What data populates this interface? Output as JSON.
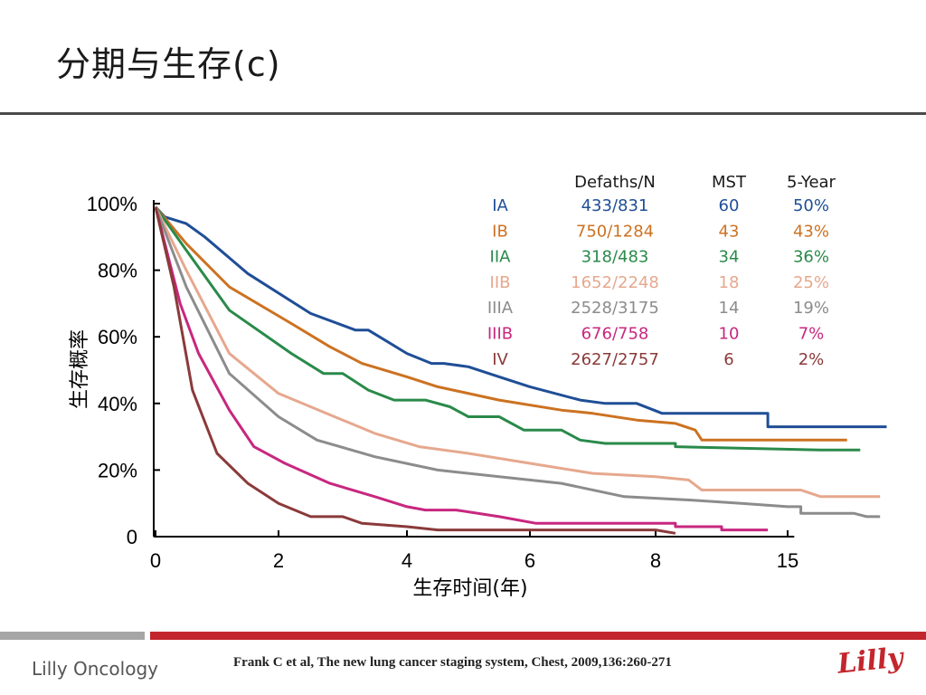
{
  "slide": {
    "title": "分期与生存(c)",
    "citation": "Frank C et al, The new lung cancer staging system, Chest, 2009,136:260-271",
    "footer_logo": "Lilly Oncology",
    "brand": "Lilly",
    "colors": {
      "bottom_bar_gray": "#a6a6a6",
      "bottom_bar_red": "#c3262d",
      "title_rule": "#4a4a4a"
    }
  },
  "chart_data": {
    "type": "line",
    "title": "",
    "xlabel": "生存时间(年)",
    "ylabel": "生存概率",
    "xticks": [
      "0",
      "2",
      "4",
      "6",
      "8",
      "15"
    ],
    "yticks": [
      "0",
      "20%",
      "40%",
      "60%",
      "80%",
      "100%"
    ],
    "ylim": [
      0,
      100
    ],
    "grid": false,
    "legend_table": {
      "headers": [
        "",
        "Defaths/N",
        "MST",
        "5-Year"
      ],
      "rows": [
        {
          "stage": "IA",
          "deaths_n": "433/831",
          "mst": "60",
          "five_year": "50%",
          "color": "#1f4e96"
        },
        {
          "stage": "IB",
          "deaths_n": "750/1284",
          "mst": "43",
          "five_year": "43%",
          "color": "#cc7222"
        },
        {
          "stage": "IIA",
          "deaths_n": "318/483",
          "mst": "34",
          "five_year": "36%",
          "color": "#2a8a4a"
        },
        {
          "stage": "IIB",
          "deaths_n": "1652/2248",
          "mst": "18",
          "five_year": "25%",
          "color": "#e6a88e"
        },
        {
          "stage": "IIIA",
          "deaths_n": "2528/3175",
          "mst": "14",
          "five_year": "19%",
          "color": "#8c8c8c"
        },
        {
          "stage": "IIIB",
          "deaths_n": "676/758",
          "mst": "10",
          "five_year": "7%",
          "color": "#c8277f"
        },
        {
          "stage": "IV",
          "deaths_n": "2627/2757",
          "mst": "6",
          "five_year": "2%",
          "color": "#8b3a3a"
        }
      ]
    },
    "series": [
      {
        "name": "IA",
        "color": "#1f4e96",
        "points": [
          [
            0,
            99
          ],
          [
            0.15,
            96
          ],
          [
            0.5,
            94
          ],
          [
            0.8,
            90
          ],
          [
            1.5,
            79
          ],
          [
            2.5,
            67
          ],
          [
            3.2,
            62
          ],
          [
            3.4,
            62
          ],
          [
            4,
            55
          ],
          [
            4.4,
            52
          ],
          [
            4.6,
            52
          ],
          [
            5,
            51
          ],
          [
            5.5,
            48
          ],
          [
            6,
            45
          ],
          [
            6.8,
            41
          ],
          [
            7.2,
            40
          ],
          [
            7.7,
            40
          ],
          [
            8.1,
            37
          ],
          [
            8.6,
            37
          ],
          [
            9.7,
            37
          ],
          [
            9.7,
            33
          ],
          [
            11.5,
            33
          ]
        ]
      },
      {
        "name": "IB",
        "color": "#cc7222",
        "points": [
          [
            0,
            99
          ],
          [
            0.5,
            88
          ],
          [
            1.2,
            75
          ],
          [
            2.2,
            64
          ],
          [
            2.8,
            57
          ],
          [
            3.3,
            52
          ],
          [
            4,
            48
          ],
          [
            4.5,
            45
          ],
          [
            5.5,
            41
          ],
          [
            6.5,
            38
          ],
          [
            7,
            37
          ],
          [
            7.7,
            35
          ],
          [
            8.3,
            34
          ],
          [
            8.6,
            32
          ],
          [
            8.7,
            29
          ],
          [
            9.5,
            29
          ],
          [
            10.9,
            29
          ]
        ]
      },
      {
        "name": "IIA",
        "color": "#2a8a4a",
        "points": [
          [
            0,
            99
          ],
          [
            0.5,
            86
          ],
          [
            1.2,
            68
          ],
          [
            2.2,
            55
          ],
          [
            2.7,
            49
          ],
          [
            3,
            49
          ],
          [
            3.4,
            44
          ],
          [
            3.8,
            41
          ],
          [
            4.3,
            41
          ],
          [
            4.7,
            39
          ],
          [
            5,
            36
          ],
          [
            5.5,
            36
          ],
          [
            5.9,
            32
          ],
          [
            6.5,
            32
          ],
          [
            6.8,
            29
          ],
          [
            7.2,
            28
          ],
          [
            8.3,
            28
          ],
          [
            8.3,
            27
          ],
          [
            10.5,
            26
          ],
          [
            11.1,
            26
          ]
        ]
      },
      {
        "name": "IIB",
        "color": "#e6a88e",
        "points": [
          [
            0,
            99
          ],
          [
            0.5,
            80
          ],
          [
            1.2,
            55
          ],
          [
            2,
            43
          ],
          [
            3,
            35
          ],
          [
            3.5,
            31
          ],
          [
            4.2,
            27
          ],
          [
            5,
            25
          ],
          [
            6,
            22
          ],
          [
            7,
            19
          ],
          [
            8,
            18
          ],
          [
            8.5,
            17
          ],
          [
            8.7,
            14
          ],
          [
            9.2,
            14
          ],
          [
            10.2,
            14
          ],
          [
            10.5,
            12
          ],
          [
            11.4,
            12
          ]
        ]
      },
      {
        "name": "IIIA",
        "color": "#8c8c8c",
        "points": [
          [
            0,
            99
          ],
          [
            0.5,
            75
          ],
          [
            1.2,
            49
          ],
          [
            2,
            36
          ],
          [
            2.6,
            29
          ],
          [
            3.5,
            24
          ],
          [
            4.5,
            20
          ],
          [
            5.5,
            18
          ],
          [
            6.5,
            16
          ],
          [
            7.5,
            12
          ],
          [
            8.5,
            11
          ],
          [
            9.3,
            10
          ],
          [
            10,
            9
          ],
          [
            10.2,
            9
          ],
          [
            10.2,
            7
          ],
          [
            11,
            7
          ],
          [
            11.2,
            6
          ],
          [
            11.4,
            6
          ]
        ]
      },
      {
        "name": "IIIB",
        "color": "#c8277f",
        "points": [
          [
            0,
            99
          ],
          [
            0.4,
            70
          ],
          [
            0.7,
            55
          ],
          [
            1.2,
            38
          ],
          [
            1.6,
            27
          ],
          [
            2.1,
            22
          ],
          [
            2.8,
            16
          ],
          [
            3.5,
            12
          ],
          [
            4,
            9
          ],
          [
            4.3,
            8
          ],
          [
            4.8,
            8
          ],
          [
            5.5,
            6
          ],
          [
            6.1,
            4
          ],
          [
            7,
            4
          ],
          [
            8.3,
            4
          ],
          [
            8.3,
            3
          ],
          [
            9,
            3
          ],
          [
            9,
            2
          ],
          [
            9.7,
            2
          ]
        ]
      },
      {
        "name": "IV",
        "color": "#8b3a3a",
        "points": [
          [
            0,
            99
          ],
          [
            0.3,
            75
          ],
          [
            0.6,
            44
          ],
          [
            1,
            25
          ],
          [
            1.5,
            16
          ],
          [
            2,
            10
          ],
          [
            2.5,
            6
          ],
          [
            3,
            6
          ],
          [
            3.3,
            4
          ],
          [
            4,
            3
          ],
          [
            4.5,
            2
          ],
          [
            6,
            2
          ],
          [
            8,
            2
          ],
          [
            8.3,
            1
          ]
        ]
      }
    ]
  }
}
